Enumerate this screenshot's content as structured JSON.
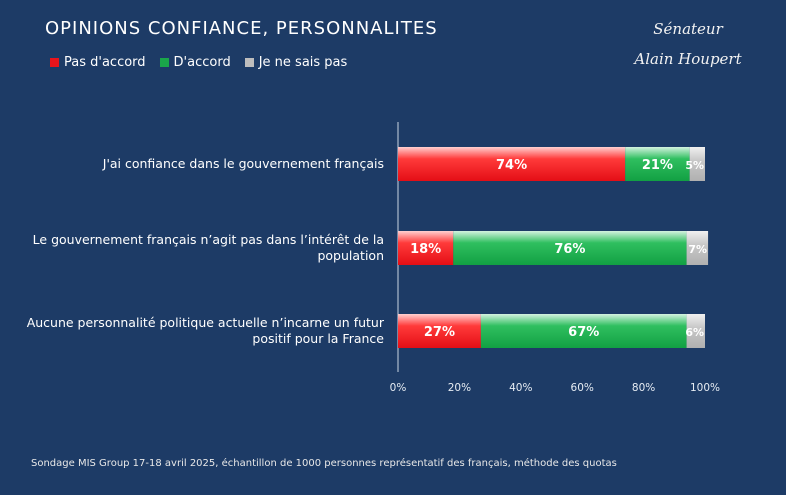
{
  "title": "OPINIONS CONFIANCE, PERSONNALITES",
  "signature": {
    "line1": "Sénateur",
    "line2": "Alain Houpert"
  },
  "colors": {
    "disagree": "#e8141c",
    "agree": "#1aa64a",
    "dontknow": "#bdbdbd",
    "background": "#1d3b66"
  },
  "source": "Sondage MIS Group 17-18 avril 2025, échantillon de 1000 personnes représentatif des français, méthode des quotas",
  "chart_data": {
    "type": "bar",
    "orientation": "horizontal",
    "stacked": true,
    "categories": [
      "J'ai confiance dans le gouvernement français",
      "Le gouvernement français n'agit pas dans l'intérêt de la population",
      "Aucune personnalité politique actuelle n'incarne un futur positif pour la France"
    ],
    "series": [
      {
        "name": "Pas d'accord",
        "values": [
          74,
          18,
          27
        ]
      },
      {
        "name": "D'accord",
        "values": [
          21,
          76,
          67
        ]
      },
      {
        "name": "Je ne sais pas",
        "values": [
          5,
          7,
          6
        ]
      }
    ],
    "data_labels": [
      [
        "74%",
        "21%",
        "5%"
      ],
      [
        "18%",
        "76%",
        "7%"
      ],
      [
        "27%",
        "67%",
        "6%"
      ]
    ],
    "xlim": [
      0,
      100
    ],
    "xticks": [
      "0%",
      "20%",
      "40%",
      "60%",
      "80%",
      "100%"
    ],
    "legend_position": "top-left",
    "grid": false
  }
}
